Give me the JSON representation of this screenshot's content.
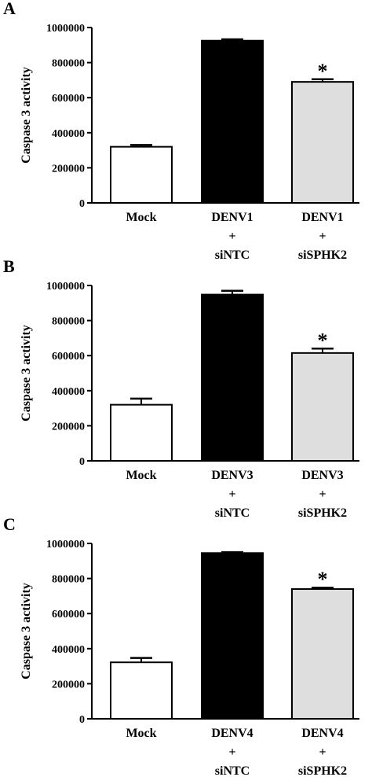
{
  "chart_data": [
    {
      "panel": "A",
      "type": "bar",
      "ylabel": "Caspase 3 activity",
      "ylim": [
        0,
        1000000
      ],
      "yticks": [
        "0",
        "200000",
        "400000",
        "600000",
        "800000",
        "1000000"
      ],
      "categories": [
        [
          "Mock"
        ],
        [
          "DENV1",
          "+",
          "siNTC"
        ],
        [
          "DENV1",
          "+",
          "siSPHK2"
        ]
      ],
      "values": [
        320000,
        925000,
        690000
      ],
      "errors": [
        10000,
        8000,
        15000
      ],
      "fills": [
        "#ffffff",
        "#000000",
        "#dedede"
      ],
      "significance": [
        "",
        "",
        "*"
      ]
    },
    {
      "panel": "B",
      "type": "bar",
      "ylabel": "Caspase 3 activity",
      "ylim": [
        0,
        1000000
      ],
      "yticks": [
        "0",
        "200000",
        "400000",
        "600000",
        "800000",
        "1000000"
      ],
      "categories": [
        [
          "Mock"
        ],
        [
          "DENV3",
          "+",
          "siNTC"
        ],
        [
          "DENV3",
          "+",
          "siSPHK2"
        ]
      ],
      "values": [
        320000,
        948000,
        615000
      ],
      "errors": [
        35000,
        22000,
        25000
      ],
      "fills": [
        "#ffffff",
        "#000000",
        "#dedede"
      ],
      "significance": [
        "",
        "",
        "*"
      ]
    },
    {
      "panel": "C",
      "type": "bar",
      "ylabel": "Caspase 3 activity",
      "ylim": [
        0,
        1000000
      ],
      "yticks": [
        "0",
        "200000",
        "400000",
        "600000",
        "800000",
        "1000000"
      ],
      "categories": [
        [
          "Mock"
        ],
        [
          "DENV4",
          "+",
          "siNTC"
        ],
        [
          "DENV4",
          "+",
          "siSPHK2"
        ]
      ],
      "values": [
        322000,
        945000,
        740000
      ],
      "errors": [
        25000,
        5000,
        8000
      ],
      "fills": [
        "#ffffff",
        "#000000",
        "#dedede"
      ],
      "significance": [
        "",
        "",
        "*"
      ]
    }
  ]
}
